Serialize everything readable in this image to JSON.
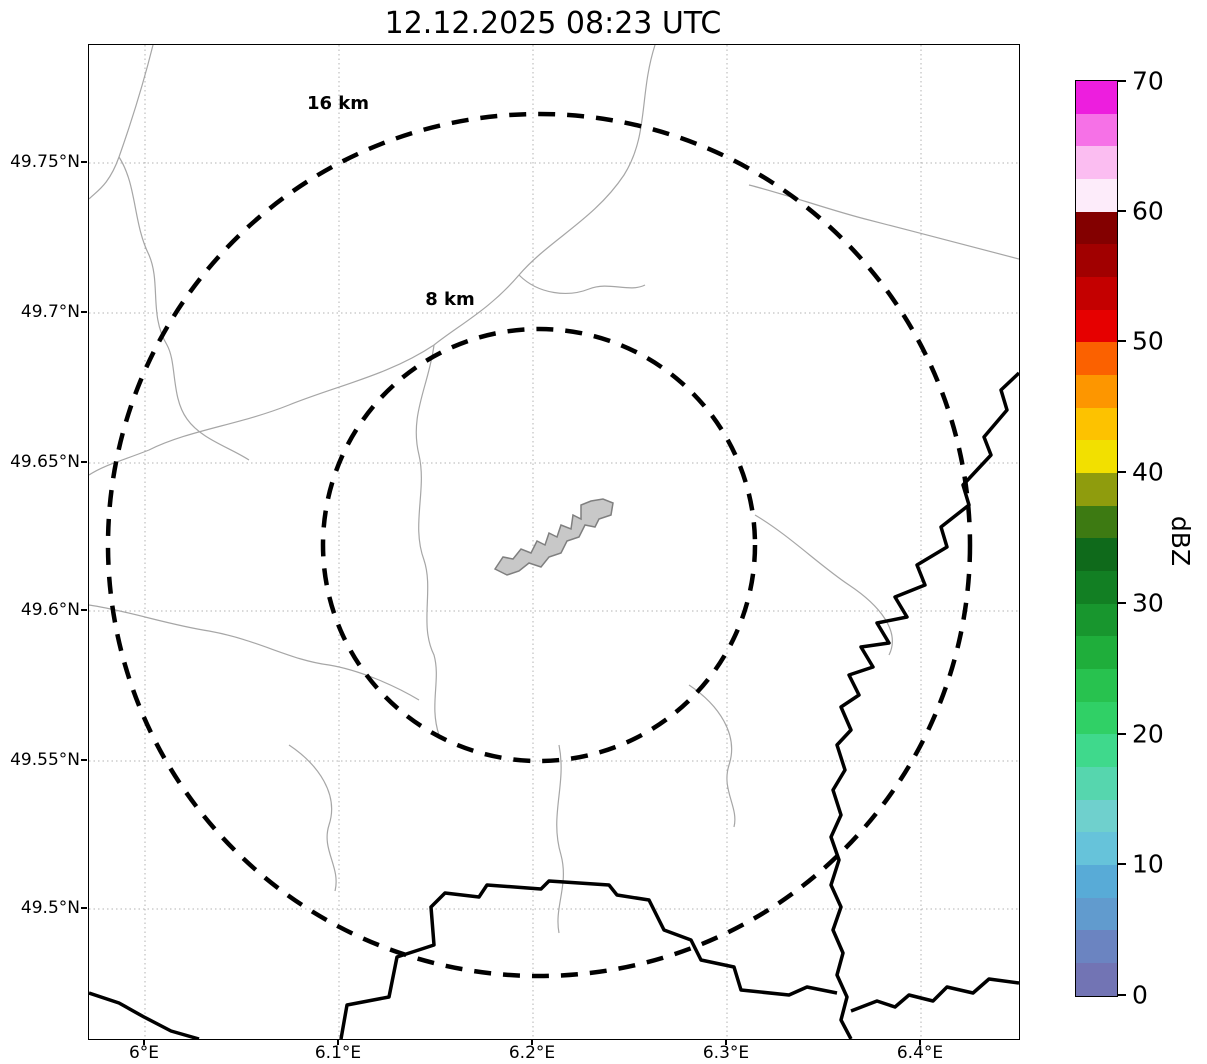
{
  "title": "12.12.2025 08:23 UTC",
  "map": {
    "ring_16_label": "16 km",
    "ring_8_label": "8 km",
    "x_ticks": [
      "6°E",
      "6.1°E",
      "6.2°E",
      "6.3°E",
      "6.4°E"
    ],
    "y_ticks": [
      "49.75°N",
      "49.7°N",
      "49.65°N",
      "49.6°N",
      "49.55°N",
      "49.5°N"
    ]
  },
  "colorbar": {
    "label": "dBZ",
    "ticks": [
      "70",
      "60",
      "50",
      "40",
      "30",
      "20",
      "10",
      "0"
    ],
    "band_colors": [
      "#ed1ede",
      "#f671e7",
      "#fbbdf1",
      "#fdecfa",
      "#830000",
      "#a10000",
      "#c40000",
      "#e60000",
      "#fb6100",
      "#fd9600",
      "#fdc200",
      "#f2e000",
      "#8f9c0d",
      "#3d7a12",
      "#0f6a1b",
      "#127f23",
      "#18962e",
      "#1fae3b",
      "#28c24f",
      "#30d066",
      "#3fd98c",
      "#56d6ae",
      "#6fd0cd",
      "#66c3da",
      "#58abd7",
      "#619bce",
      "#6b84c1",
      "#7274b4"
    ]
  },
  "chart_data": {
    "type": "map",
    "title": "12.12.2025 08:23 UTC",
    "x_tick_labels": [
      "6°E",
      "6.1°E",
      "6.2°E",
      "6.3°E",
      "6.4°E"
    ],
    "y_tick_labels": [
      "49.75°N",
      "49.7°N",
      "49.65°N",
      "49.6°N",
      "49.55°N",
      "49.5°N"
    ],
    "range_rings": [
      {
        "label": "8 km",
        "radius_km": 8,
        "style": "dashed"
      },
      {
        "label": "16 km",
        "radius_km": 16,
        "style": "dashed"
      }
    ],
    "colorbar": {
      "label": "dBZ",
      "min": 0,
      "max": 70,
      "ticks": [
        0,
        10,
        20,
        30,
        40,
        50,
        60,
        70
      ]
    },
    "echoes_visible": false,
    "grid": "dotted",
    "legend_position": "right-colorbar"
  }
}
